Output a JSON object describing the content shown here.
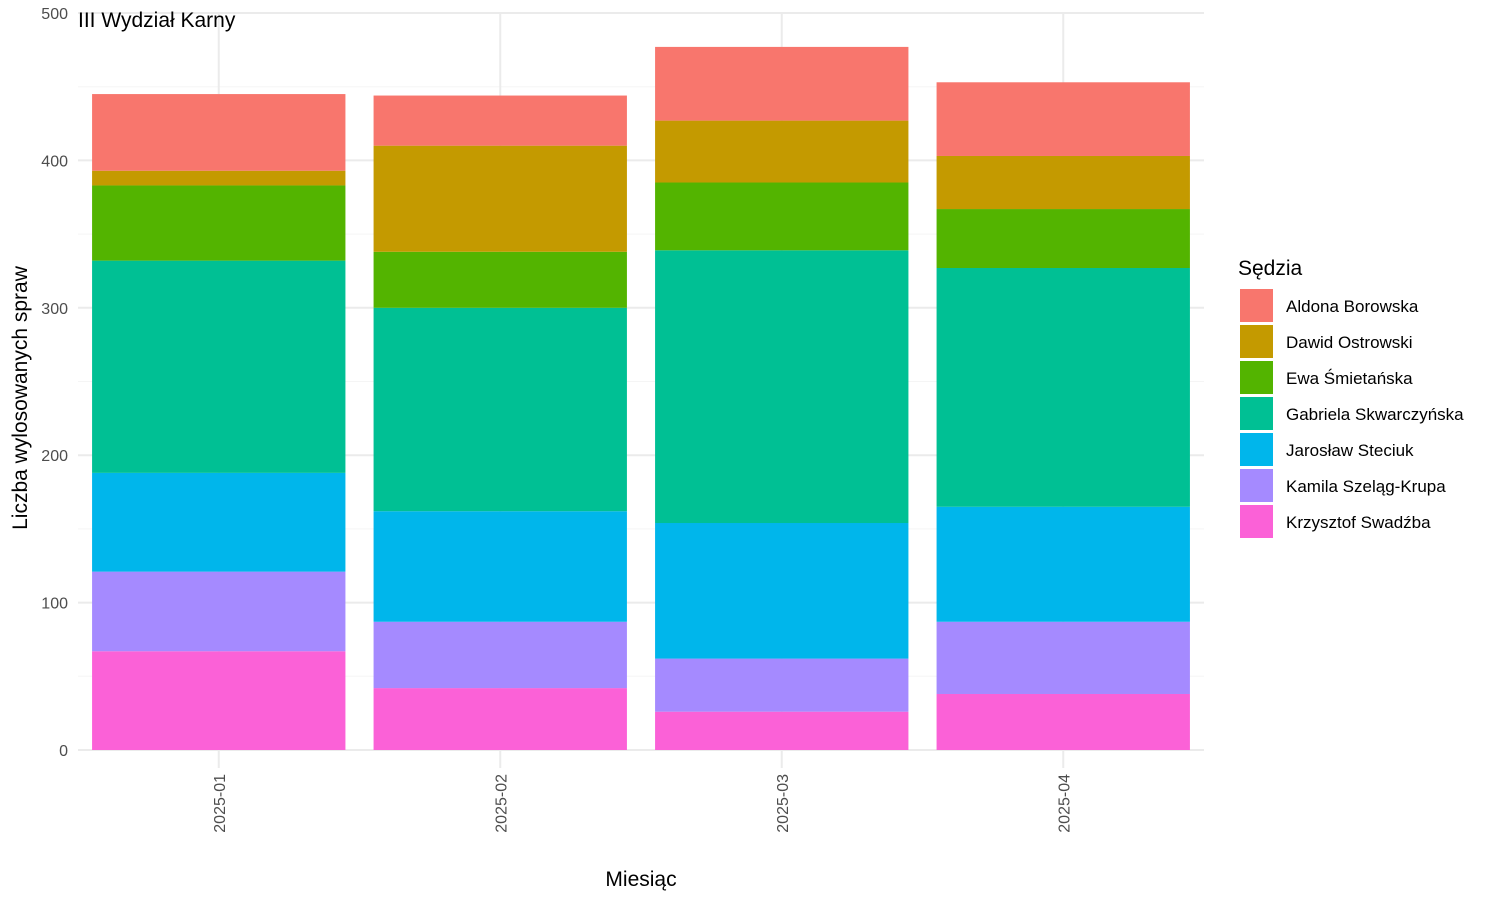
{
  "chart_data": {
    "type": "bar",
    "stacked": true,
    "title": "III Wydział Karny",
    "xlabel": "Miesiąc",
    "ylabel": "Liczba wylosowanych spraw",
    "ylim": [
      0,
      500
    ],
    "yticks": [
      0,
      100,
      200,
      300,
      400,
      500
    ],
    "grid": true,
    "legend_title": "Sędzia",
    "legend_position": "right",
    "categories": [
      "2025-01",
      "2025-02",
      "2025-03",
      "2025-04"
    ],
    "series": [
      {
        "name": "Krzysztof Swadźba",
        "color": "#FB61D7",
        "values": [
          67,
          42,
          26,
          38
        ]
      },
      {
        "name": "Kamila Szeląg-Krupa",
        "color": "#A58AFF",
        "values": [
          54,
          45,
          36,
          49
        ]
      },
      {
        "name": "Jarosław Steciuk",
        "color": "#00B6EB",
        "values": [
          67,
          75,
          92,
          78
        ]
      },
      {
        "name": "Gabriela Skwarczyńska",
        "color": "#00C094",
        "values": [
          144,
          138,
          185,
          162
        ]
      },
      {
        "name": "Ewa Śmietańska",
        "color": "#53B400",
        "values": [
          51,
          38,
          46,
          40
        ]
      },
      {
        "name": "Dawid Ostrowski",
        "color": "#C49A00",
        "values": [
          10,
          72,
          42,
          36
        ]
      },
      {
        "name": "Aldona Borowska",
        "color": "#F8766D",
        "values": [
          52,
          34,
          50,
          50
        ]
      }
    ],
    "legend_order": [
      "Aldona Borowska",
      "Dawid Ostrowski",
      "Ewa Śmietańska",
      "Gabriela Skwarczyńska",
      "Jarosław Steciuk",
      "Kamila Szeląg-Krupa",
      "Krzysztof Swadźba"
    ]
  }
}
